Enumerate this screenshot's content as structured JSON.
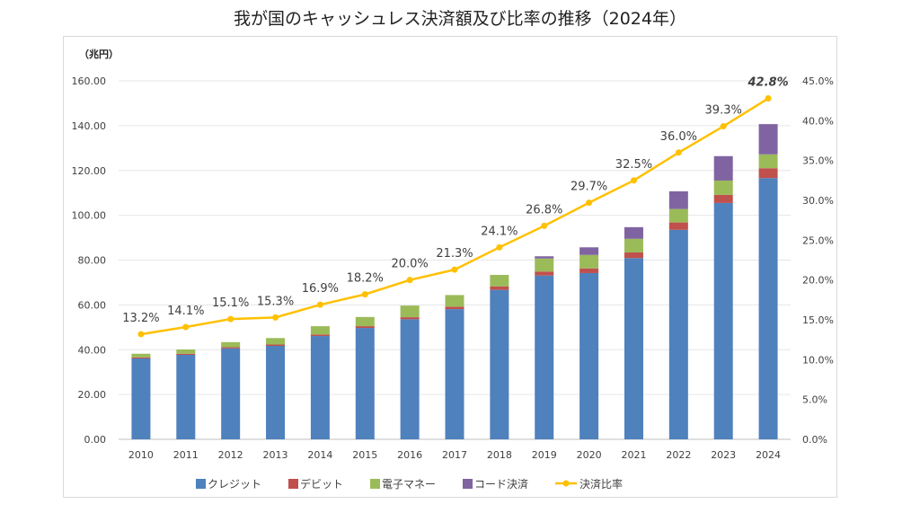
{
  "chart_data": {
    "type": "bar",
    "title": "我が国のキャッシュレス決済額及び比率の推移（2024年）",
    "left_axis_unit": "（兆円）",
    "categories": [
      "2010",
      "2011",
      "2012",
      "2013",
      "2014",
      "2015",
      "2016",
      "2017",
      "2018",
      "2019",
      "2020",
      "2021",
      "2022",
      "2023",
      "2024"
    ],
    "left_axis": {
      "range": [
        0,
        160
      ],
      "ticks": [
        "0.00",
        "20.00",
        "40.00",
        "60.00",
        "80.00",
        "100.00",
        "120.00",
        "140.00",
        "160.00"
      ]
    },
    "right_axis": {
      "range": [
        0,
        45
      ],
      "ticks": [
        "0.0%",
        "5.0%",
        "10.0%",
        "15.0%",
        "20.0%",
        "25.0%",
        "30.0%",
        "35.0%",
        "40.0%",
        "45.0%"
      ]
    },
    "grid": true,
    "legend_position": "bottom",
    "series": [
      {
        "name": "クレジット",
        "kind": "stacked-bar",
        "color": "#4f81bd",
        "values": [
          36.1,
          37.7,
          40.6,
          41.7,
          46.1,
          49.7,
          53.6,
          58.1,
          66.7,
          73.1,
          74.2,
          80.9,
          93.5,
          105.5,
          116.6
        ]
      },
      {
        "name": "デビット",
        "kind": "stacked-bar",
        "color": "#c0504d",
        "values": [
          0.5,
          0.5,
          0.5,
          0.6,
          0.7,
          0.8,
          0.9,
          1.1,
          1.6,
          1.8,
          2.1,
          2.5,
          3.3,
          3.6,
          4.4
        ]
      },
      {
        "name": "電子マネー",
        "kind": "stacked-bar",
        "color": "#9bbb59",
        "values": [
          1.6,
          1.9,
          2.3,
          2.9,
          3.7,
          4.1,
          5.2,
          5.2,
          5.1,
          5.8,
          6.0,
          6.1,
          6.0,
          6.4,
          6.2
        ]
      },
      {
        "name": "コード決済",
        "kind": "stacked-bar",
        "color": "#8064a2",
        "values": [
          0,
          0,
          0,
          0,
          0,
          0,
          0,
          0,
          0,
          1.0,
          3.4,
          5.2,
          7.9,
          10.9,
          13.5
        ]
      },
      {
        "name": "決済比率",
        "kind": "line",
        "axis": "right",
        "color": "#ffc000",
        "values": [
          13.2,
          14.1,
          15.1,
          15.3,
          16.9,
          18.2,
          20.0,
          21.3,
          24.1,
          26.8,
          29.7,
          32.5,
          36.0,
          39.3,
          42.8
        ],
        "labels": [
          "13.2%",
          "14.1%",
          "15.1%",
          "15.3%",
          "16.9%",
          "18.2%",
          "20.0%",
          "21.3%",
          "24.1%",
          "26.8%",
          "29.7%",
          "32.5%",
          "36.0%",
          "39.3%",
          "42.8%"
        ],
        "highlight_color": "#ff0000"
      }
    ]
  }
}
